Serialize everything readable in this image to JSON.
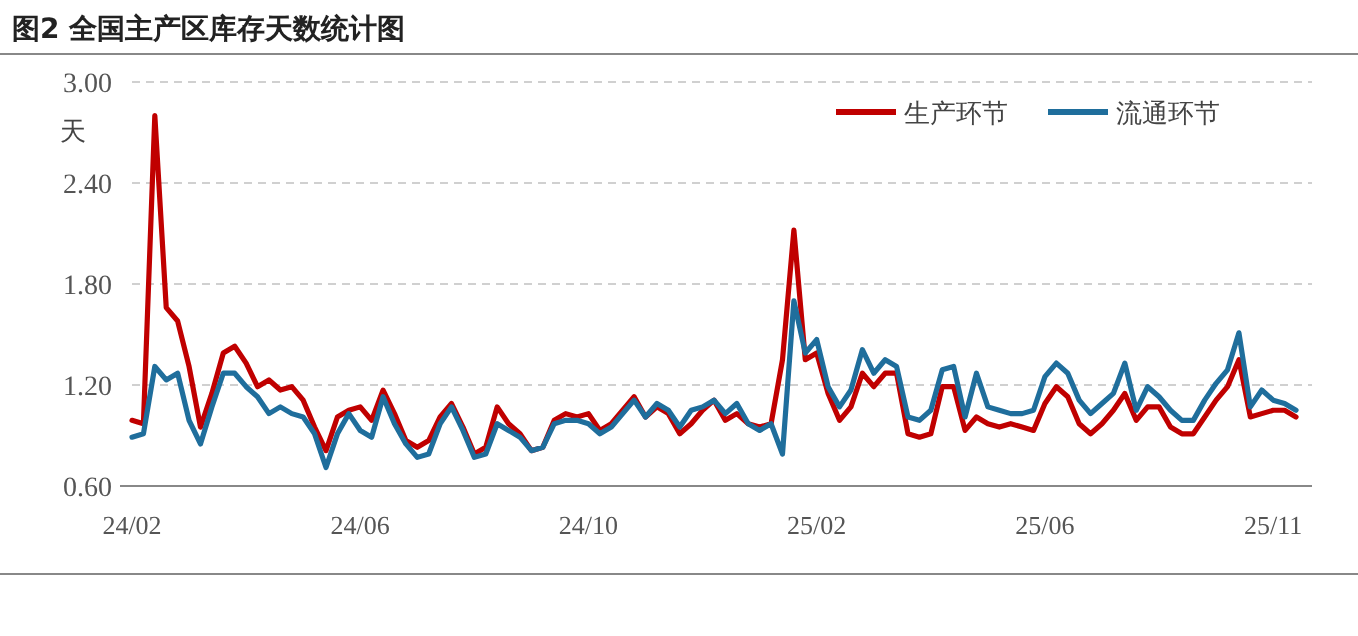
{
  "chart_data": {
    "type": "line",
    "title": "图2  全国主产区库存天数统计图",
    "ylabel": "天",
    "categories": [
      "24/02",
      null,
      null,
      null,
      null,
      null,
      null,
      null,
      null,
      null,
      null,
      null,
      null,
      null,
      null,
      null,
      null,
      null,
      null,
      null,
      "24/06",
      null,
      null,
      null,
      null,
      null,
      null,
      null,
      null,
      null,
      null,
      null,
      null,
      null,
      null,
      null,
      null,
      null,
      null,
      null,
      "24/10",
      null,
      null,
      null,
      null,
      null,
      null,
      null,
      null,
      null,
      null,
      null,
      null,
      null,
      null,
      null,
      null,
      null,
      null,
      null,
      "25/02",
      null,
      null,
      null,
      null,
      null,
      null,
      null,
      null,
      null,
      null,
      null,
      null,
      null,
      null,
      null,
      null,
      null,
      null,
      null,
      "25/06",
      null,
      null,
      null,
      null,
      null,
      null,
      null,
      null,
      null,
      null,
      null,
      null,
      null,
      null,
      null,
      null,
      null,
      null,
      null,
      "25/11",
      null,
      null
    ],
    "series": [
      {
        "name": "生产环节",
        "color": "#c00000",
        "values": [
          0.99,
          0.97,
          2.8,
          1.66,
          1.58,
          1.31,
          0.95,
          1.15,
          1.39,
          1.43,
          1.33,
          1.19,
          1.23,
          1.17,
          1.19,
          1.11,
          0.95,
          0.81,
          1.01,
          1.05,
          1.07,
          0.99,
          1.17,
          1.03,
          0.87,
          0.83,
          0.87,
          1.01,
          1.09,
          0.95,
          0.79,
          0.83,
          1.07,
          0.97,
          0.91,
          0.81,
          0.83,
          0.99,
          1.03,
          1.01,
          1.03,
          0.93,
          0.97,
          1.05,
          1.13,
          1.01,
          1.07,
          1.03,
          0.91,
          0.97,
          1.05,
          1.11,
          0.99,
          1.03,
          0.97,
          0.95,
          0.97,
          1.35,
          2.12,
          1.35,
          1.39,
          1.15,
          0.99,
          1.07,
          1.27,
          1.19,
          1.27,
          1.27,
          0.91,
          0.89,
          0.91,
          1.19,
          1.19,
          0.93,
          1.01,
          0.97,
          0.95,
          0.97,
          0.95,
          0.93,
          1.09,
          1.19,
          1.13,
          0.97,
          0.91,
          0.97,
          1.05,
          1.15,
          0.99,
          1.07,
          1.07,
          0.95,
          0.91,
          0.91,
          1.01,
          1.11,
          1.19,
          1.35,
          1.01,
          1.03,
          1.05,
          1.05,
          1.01
        ]
      },
      {
        "name": "流通环节",
        "color": "#1f6e9c",
        "values": [
          0.89,
          0.91,
          1.31,
          1.23,
          1.27,
          0.99,
          0.85,
          1.07,
          1.27,
          1.27,
          1.19,
          1.13,
          1.03,
          1.07,
          1.03,
          1.01,
          0.91,
          0.71,
          0.91,
          1.03,
          0.93,
          0.89,
          1.13,
          0.97,
          0.85,
          0.77,
          0.79,
          0.97,
          1.07,
          0.93,
          0.77,
          0.79,
          0.97,
          0.93,
          0.89,
          0.81,
          0.83,
          0.97,
          0.99,
          0.99,
          0.97,
          0.91,
          0.95,
          1.03,
          1.11,
          1.01,
          1.09,
          1.05,
          0.95,
          1.05,
          1.07,
          1.11,
          1.03,
          1.09,
          0.97,
          0.93,
          0.97,
          0.79,
          1.7,
          1.39,
          1.47,
          1.19,
          1.07,
          1.17,
          1.41,
          1.27,
          1.35,
          1.31,
          1.01,
          0.99,
          1.05,
          1.29,
          1.31,
          1.01,
          1.27,
          1.07,
          1.05,
          1.03,
          1.03,
          1.05,
          1.25,
          1.33,
          1.27,
          1.11,
          1.03,
          1.09,
          1.15,
          1.33,
          1.05,
          1.19,
          1.13,
          1.05,
          0.99,
          0.99,
          1.11,
          1.21,
          1.29,
          1.51,
          1.07,
          1.17,
          1.11,
          1.09,
          1.05
        ]
      }
    ],
    "ylim": [
      0.6,
      3.0
    ],
    "yticks": [
      {
        "value": 0.6,
        "label": "0.60"
      },
      {
        "value": 1.2,
        "label": "1.20"
      },
      {
        "value": 1.8,
        "label": "1.80"
      },
      {
        "value": 2.4,
        "label": "2.40"
      },
      {
        "value": 3.0,
        "label": "3.00"
      }
    ],
    "grid": "y",
    "legend": "top right"
  }
}
